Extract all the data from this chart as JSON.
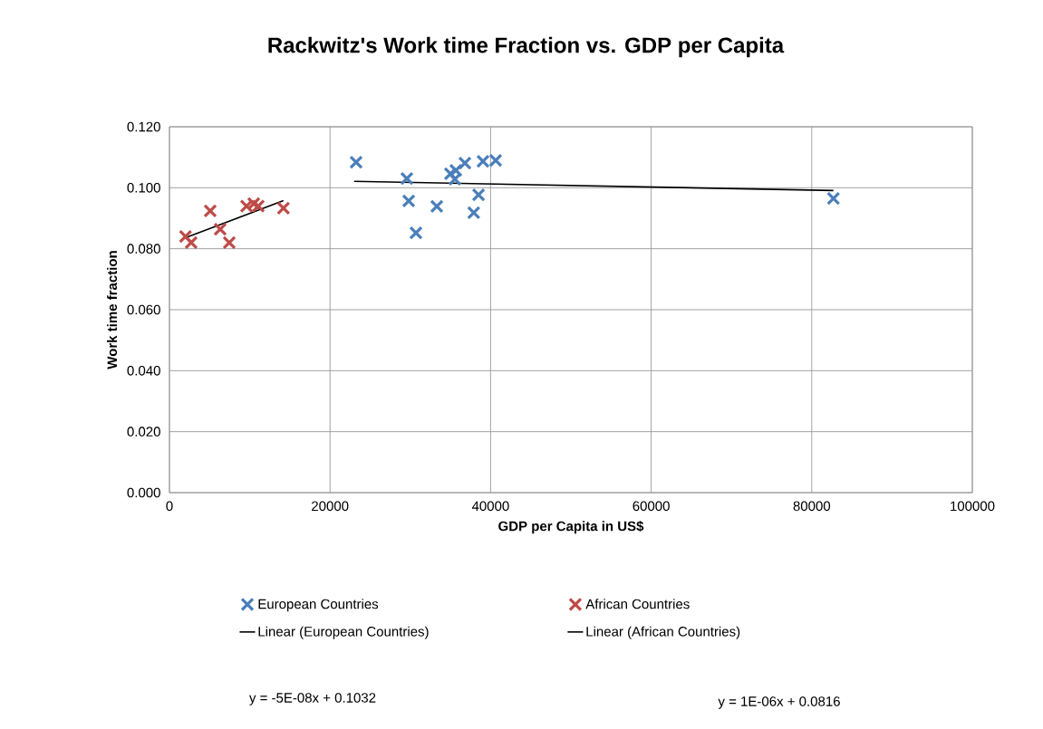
{
  "chart_data": {
    "type": "scatter",
    "title": "Rackwitz's Work time Fraction vs. GDP per Capita",
    "xlabel": "GDP per Capita in US$",
    "ylabel": "Work time fraction",
    "xlim": [
      0,
      100000
    ],
    "xticks": [
      0,
      20000,
      40000,
      60000,
      80000,
      100000
    ],
    "ylim": [
      0,
      0.12
    ],
    "yticks": [
      {
        "value": 0,
        "label": "0.000"
      },
      {
        "value": 0.02,
        "label": "0.020"
      },
      {
        "value": 0.04,
        "label": "0.040"
      },
      {
        "value": 0.06,
        "label": "0.060"
      },
      {
        "value": 0.08,
        "label": "0.080"
      },
      {
        "value": 0.1,
        "label": "0.100"
      },
      {
        "value": 0.12,
        "label": "0.120"
      }
    ],
    "grid": true,
    "legend": "bottom",
    "marker": "cross",
    "series": [
      {
        "name": "European Countries",
        "color": "#4a7ebb",
        "x": [
          23250,
          29570,
          29800,
          30700,
          33300,
          35000,
          35550,
          35670,
          36800,
          38500,
          37900,
          39050,
          40630,
          82700
        ],
        "values": [
          0.1084,
          0.103,
          0.0957,
          0.0852,
          0.0939,
          0.1046,
          0.1028,
          0.1057,
          0.1081,
          0.0977,
          0.0918,
          0.1087,
          0.109,
          0.0965
        ]
      },
      {
        "name": "African Countries",
        "color": "#be4b48",
        "x": [
          2000,
          2700,
          5080,
          6320,
          7450,
          9600,
          10500,
          11060,
          14200
        ],
        "values": [
          0.084,
          0.082,
          0.0924,
          0.0864,
          0.082,
          0.094,
          0.0948,
          0.094,
          0.0933
        ]
      },
      {
        "name": "Linear (European Countries)",
        "type": "line",
        "color": "#000000",
        "marker": "none",
        "line_style": "solid",
        "x": [
          23000,
          82700
        ],
        "values": [
          0.1021,
          0.0991
        ]
      },
      {
        "name": "Linear (African Countries)",
        "type": "line",
        "color": "#000000",
        "marker": "none",
        "line_style": "solid",
        "x": [
          2000,
          14200
        ],
        "values": [
          0.0836,
          0.0958
        ]
      }
    ],
    "annotations": [
      "y = -5E-08x + 0.1032",
      "y = 1E-06x + 0.0816"
    ]
  }
}
